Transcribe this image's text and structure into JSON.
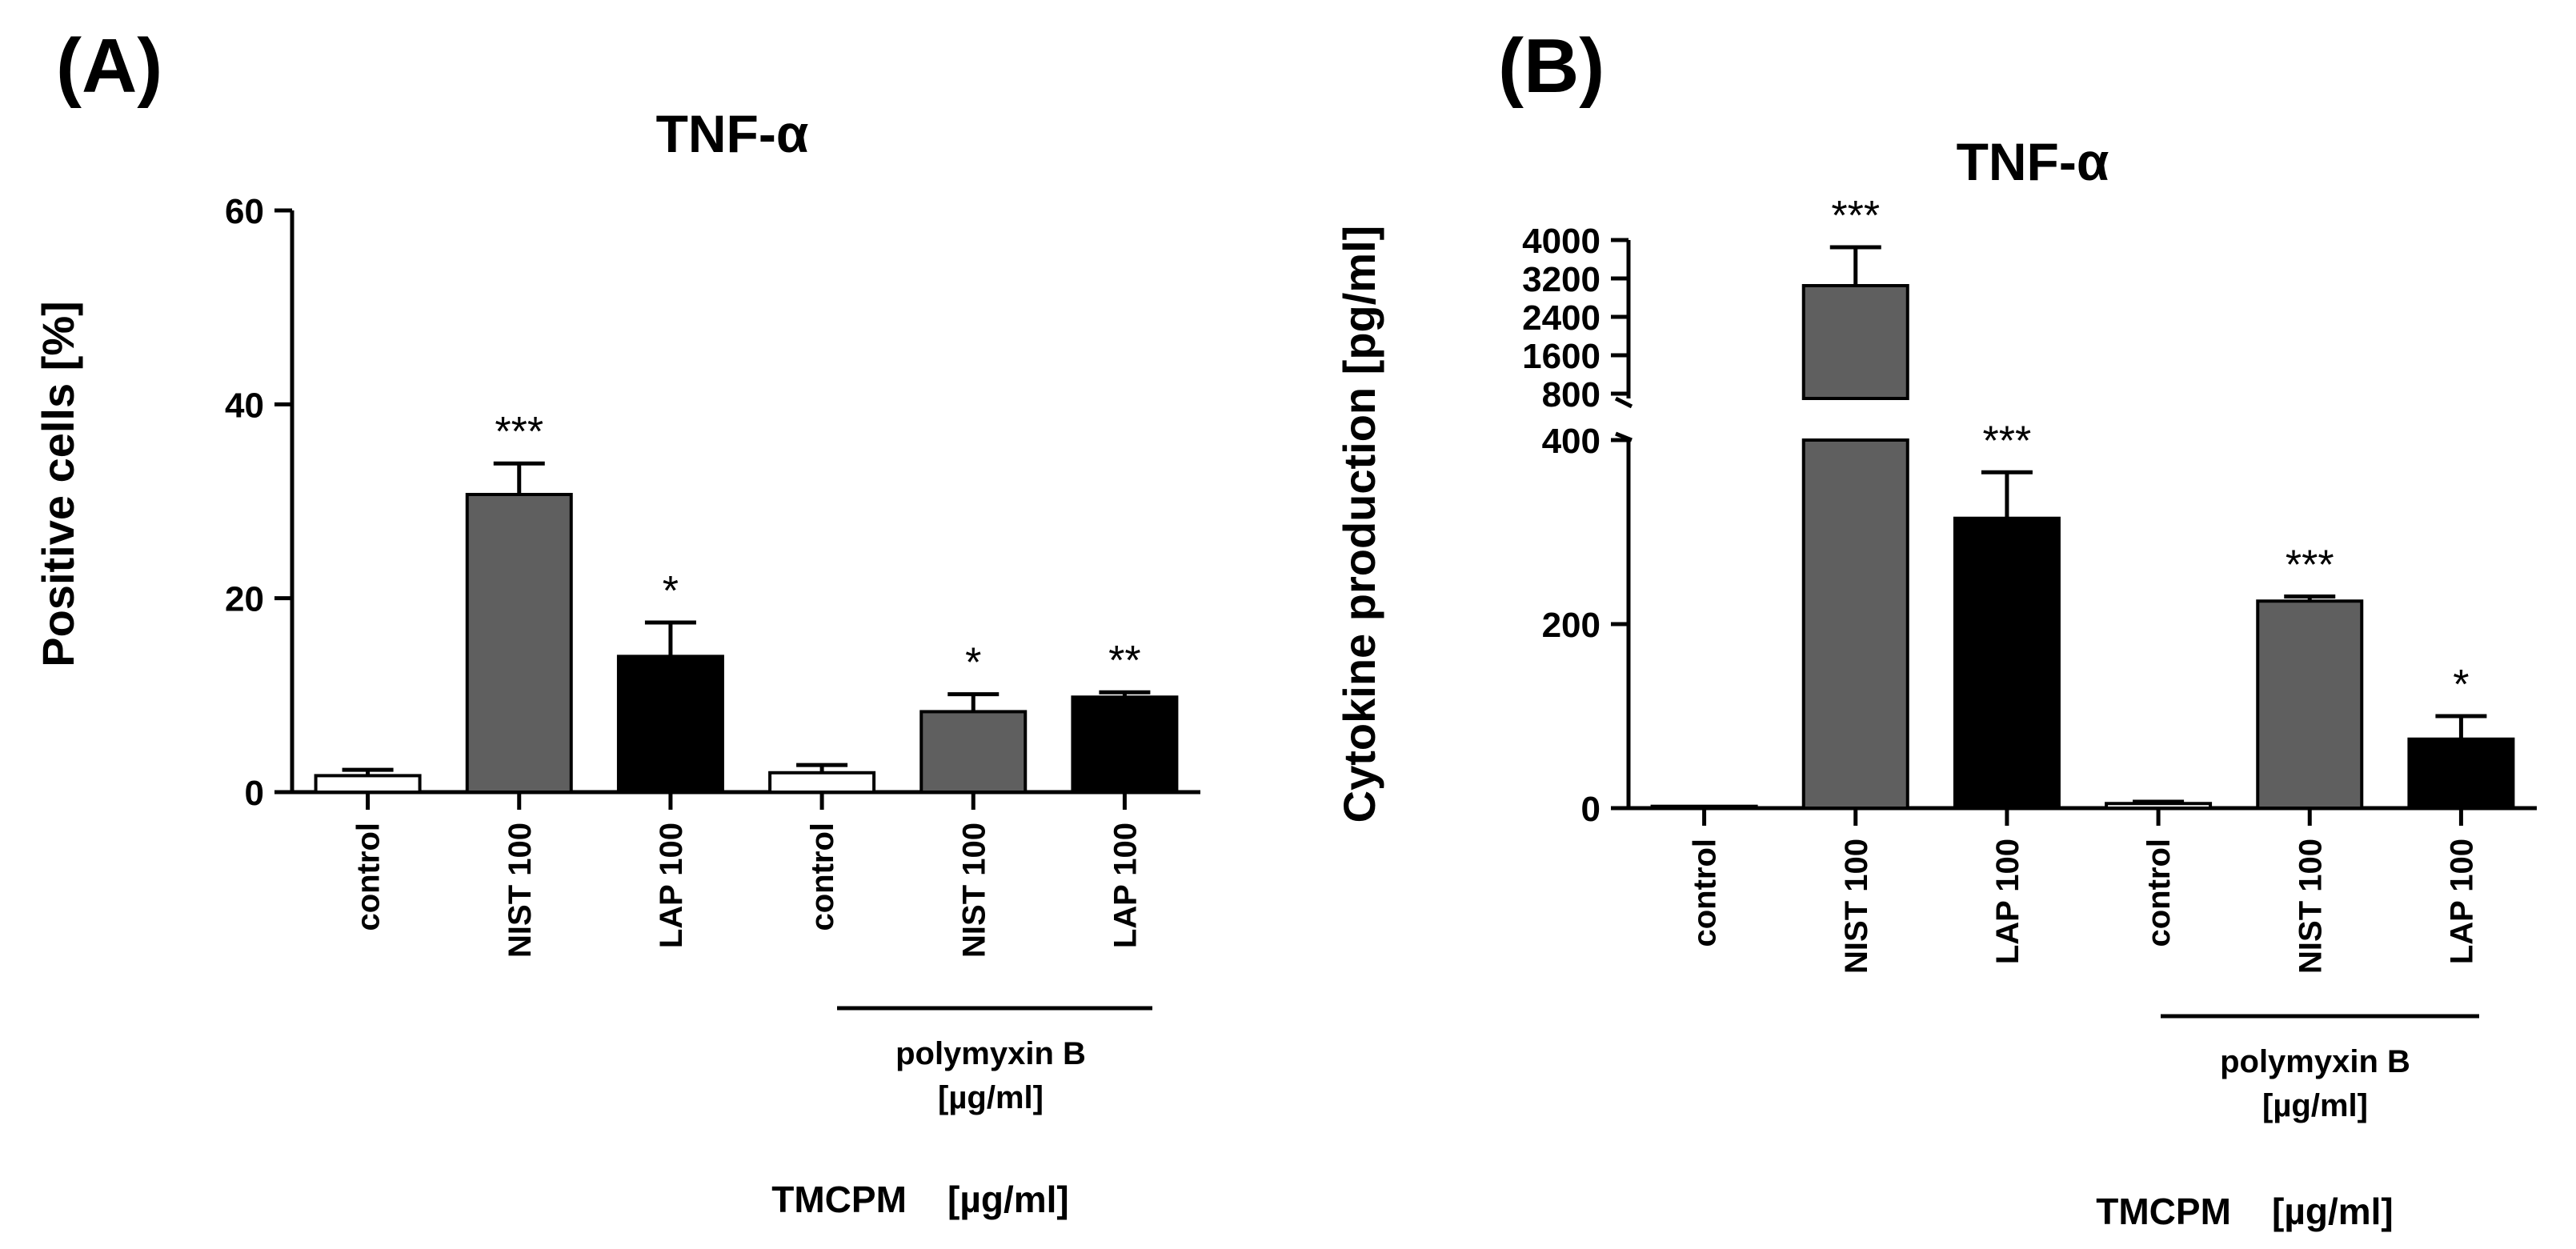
{
  "chart_data": [
    {
      "id": "A",
      "panel_label": "(A)",
      "type": "bar",
      "title": "TNF-α",
      "ylabel": "Positive cells [%]",
      "xlabel": "TMCPM    [µg/ml]",
      "ylim": [
        0,
        60
      ],
      "yticks": [
        0,
        20,
        40,
        60
      ],
      "group_label_line1": "polymyxin B",
      "group_label_line2": "[µg/ml]",
      "categories": [
        "control",
        "NIST 100",
        "LAP 100",
        "control",
        "NIST 100",
        "LAP 100"
      ],
      "values": [
        1.7,
        30.7,
        14.0,
        2.0,
        8.3,
        9.8
      ],
      "errors": [
        0.6,
        3.2,
        3.5,
        0.8,
        1.8,
        0.5
      ],
      "significance": [
        "",
        "***",
        "*",
        "",
        "*",
        "**"
      ],
      "colors": [
        "#ffffff",
        "#5f5f5f",
        "#000000",
        "#ffffff",
        "#5f5f5f",
        "#000000"
      ]
    },
    {
      "id": "B",
      "panel_label": "(B)",
      "type": "bar",
      "title": "TNF-α",
      "ylabel": "Cytokine production [pg/ml]",
      "xlabel": "TMCPM    [µg/ml]",
      "ylim_lower": [
        0,
        400
      ],
      "yticks_lower": [
        0,
        200,
        400
      ],
      "ylim_upper": [
        700,
        4000
      ],
      "yticks_upper": [
        800,
        1600,
        2400,
        3200,
        4000
      ],
      "axis_break": true,
      "group_label_line1": "polymyxin B",
      "group_label_line2": "[µg/ml]",
      "categories": [
        "control",
        "NIST 100",
        "LAP 100",
        "control",
        "NIST 100",
        "LAP 100"
      ],
      "values": [
        2,
        3050,
        315,
        5,
        225,
        75
      ],
      "errors": [
        0,
        800,
        50,
        2,
        5,
        25
      ],
      "significance": [
        "",
        "***",
        "***",
        "",
        "***",
        "*"
      ],
      "colors": [
        "#ffffff",
        "#5f5f5f",
        "#000000",
        "#ffffff",
        "#5f5f5f",
        "#000000"
      ]
    }
  ]
}
